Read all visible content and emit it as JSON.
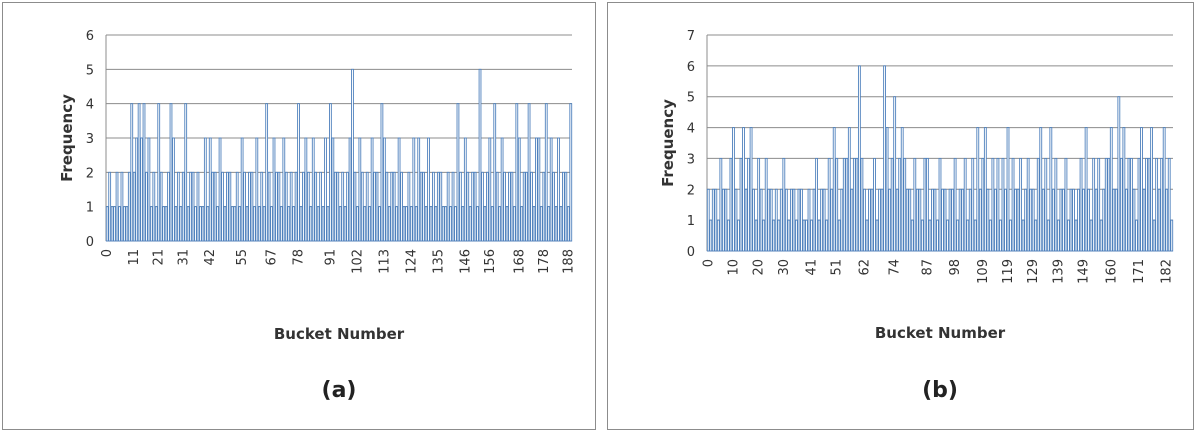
{
  "chart_data": [
    {
      "type": "bar",
      "caption": "(a)",
      "xlabel": "Bucket Number",
      "ylabel": "Frequency",
      "ylim": [
        0,
        6
      ],
      "yticks": [
        "0",
        "1",
        "2",
        "3",
        "4",
        "5",
        "6"
      ],
      "grid": true,
      "bar_color": "#4f81bd",
      "x_tick_labels": [
        "0",
        "11",
        "21",
        "31",
        "42",
        "55",
        "67",
        "78",
        "91",
        "102",
        "113",
        "124",
        "135",
        "146",
        "156",
        "168",
        "178",
        "188"
      ],
      "categories_start": 0,
      "values": [
        1,
        2,
        1,
        1,
        2,
        1,
        2,
        1,
        1,
        2,
        4,
        2,
        3,
        4,
        3,
        4,
        2,
        3,
        1,
        2,
        1,
        4,
        2,
        1,
        1,
        2,
        4,
        3,
        1,
        2,
        1,
        2,
        4,
        1,
        2,
        2,
        1,
        2,
        1,
        1,
        3,
        1,
        3,
        2,
        2,
        1,
        3,
        2,
        1,
        2,
        2,
        1,
        1,
        2,
        1,
        3,
        2,
        1,
        2,
        2,
        1,
        3,
        1,
        2,
        1,
        4,
        2,
        1,
        3,
        2,
        2,
        1,
        3,
        2,
        1,
        2,
        1,
        2,
        4,
        1,
        2,
        3,
        2,
        1,
        3,
        2,
        1,
        2,
        1,
        3,
        1,
        4,
        3,
        2,
        2,
        1,
        2,
        1,
        2,
        3,
        5,
        2,
        1,
        3,
        2,
        1,
        2,
        1,
        3,
        2,
        2,
        1,
        4,
        3,
        2,
        1,
        2,
        2,
        1,
        3,
        2,
        1,
        1,
        2,
        1,
        3,
        1,
        3,
        2,
        2,
        1,
        3,
        1,
        2,
        1,
        2,
        2,
        1,
        1,
        2,
        1,
        2,
        1,
        4,
        2,
        1,
        3,
        2,
        1,
        2,
        2,
        1,
        5,
        2,
        1,
        2,
        3,
        1,
        4,
        2,
        1,
        3,
        2,
        1,
        2,
        2,
        1,
        4,
        3,
        1,
        2,
        2,
        4,
        2,
        1,
        3,
        3,
        1,
        2,
        4,
        1,
        3,
        2,
        1,
        3,
        1,
        2,
        2,
        1,
        4
      ]
    },
    {
      "type": "bar",
      "caption": "(b)",
      "xlabel": "Bucket Number",
      "ylabel": "Frequency",
      "ylim": [
        0,
        7
      ],
      "yticks": [
        "0",
        "1",
        "2",
        "3",
        "4",
        "5",
        "6",
        "7"
      ],
      "grid": true,
      "bar_color": "#4f81bd",
      "x_tick_labels": [
        "0",
        "10",
        "20",
        "30",
        "41",
        "51",
        "62",
        "74",
        "87",
        "98",
        "109",
        "119",
        "129",
        "139",
        "149",
        "160",
        "171",
        "182"
      ],
      "categories_start": 0,
      "values": [
        2,
        1,
        2,
        2,
        1,
        3,
        2,
        2,
        1,
        3,
        4,
        2,
        1,
        3,
        4,
        2,
        3,
        4,
        2,
        1,
        3,
        2,
        1,
        3,
        2,
        2,
        1,
        2,
        1,
        2,
        3,
        2,
        1,
        2,
        2,
        1,
        2,
        2,
        1,
        1,
        2,
        1,
        2,
        3,
        1,
        2,
        2,
        1,
        3,
        2,
        4,
        3,
        1,
        2,
        3,
        3,
        4,
        2,
        3,
        3,
        6,
        3,
        2,
        1,
        2,
        2,
        3,
        1,
        2,
        2,
        6,
        4,
        2,
        3,
        5,
        2,
        3,
        4,
        3,
        2,
        2,
        1,
        3,
        2,
        2,
        1,
        3,
        3,
        1,
        2,
        2,
        1,
        3,
        2,
        2,
        1,
        2,
        2,
        3,
        1,
        2,
        2,
        3,
        1,
        2,
        3,
        1,
        4,
        2,
        3,
        4,
        2,
        1,
        3,
        2,
        3,
        1,
        3,
        2,
        4,
        1,
        3,
        2,
        2,
        3,
        1,
        2,
        3,
        2,
        2,
        1,
        3,
        4,
        2,
        3,
        1,
        4,
        2,
        3,
        1,
        2,
        2,
        3,
        1,
        2,
        2,
        1,
        2,
        3,
        2,
        4,
        2,
        1,
        3,
        2,
        3,
        1,
        2,
        3,
        3,
        4,
        2,
        2,
        5,
        3,
        4,
        2,
        3,
        3,
        2,
        1,
        3,
        4,
        2,
        3,
        3,
        4,
        1,
        3,
        2,
        3,
        4,
        2,
        3,
        1
      ]
    }
  ]
}
